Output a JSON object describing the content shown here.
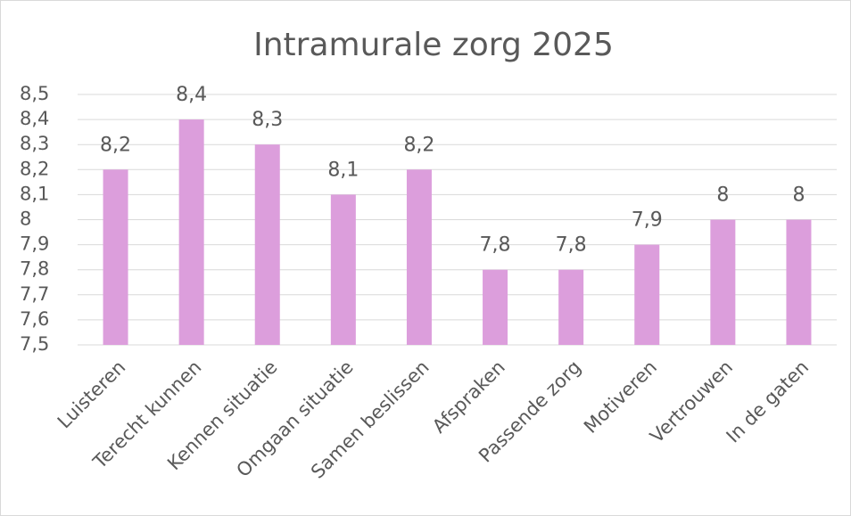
{
  "chart_data": {
    "type": "bar",
    "title": "Intramurale zorg 2025",
    "categories": [
      "Luisteren",
      "Terecht kunnen",
      "Kennen situatie",
      "Omgaan situatie",
      "Samen beslissen",
      "Afspraken",
      "Passende zorg",
      "Motiveren",
      "Vertrouwen",
      "In de gaten"
    ],
    "values": [
      8.2,
      8.4,
      8.3,
      8.1,
      8.2,
      7.8,
      7.8,
      7.9,
      8,
      8
    ],
    "value_labels": [
      "8,2",
      "8,4",
      "8,3",
      "8,1",
      "8,2",
      "7,8",
      "7,8",
      "7,9",
      "8",
      "8"
    ],
    "color": "#dc9edc",
    "ylim": [
      7.5,
      8.5
    ],
    "yticks": [
      {
        "value": 7.5,
        "label": "7,5"
      },
      {
        "value": 7.6,
        "label": "7,6"
      },
      {
        "value": 7.7,
        "label": "7,7"
      },
      {
        "value": 7.8,
        "label": "7,8"
      },
      {
        "value": 7.9,
        "label": "7,9"
      },
      8,
      {
        "value": 8.1,
        "label": "8,1"
      },
      {
        "value": 8.2,
        "label": "8,2"
      },
      {
        "value": 8.3,
        "label": "8,3"
      },
      {
        "value": 8.4,
        "label": "8,4"
      },
      {
        "value": 8.5,
        "label": "8,5"
      }
    ],
    "grid": true
  }
}
